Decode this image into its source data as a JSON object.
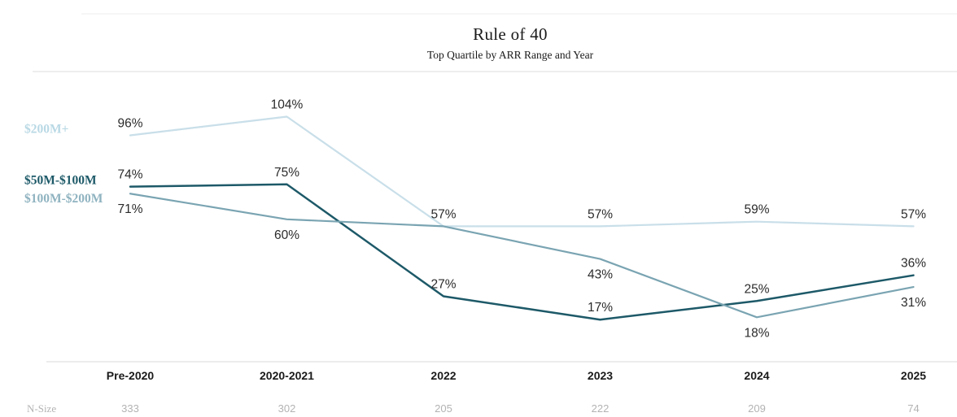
{
  "title": "Rule of 40",
  "subtitle": "Top Quartile by ARR Range and Year",
  "n_size_label": "N-Size",
  "colors": {
    "divider": "#e4e4e4",
    "axis_line": "#e1e1e1",
    "data_label": "#2b2b2b",
    "category_label": "#1a1a1a",
    "n_size": "#b3b3b3"
  },
  "chart_data": {
    "type": "line",
    "title": "Rule of 40",
    "subtitle": "Top Quartile by ARR Range and Year",
    "categories": [
      "Pre-2020",
      "2020-2021",
      "2022",
      "2023",
      "2024",
      "2025"
    ],
    "n_sizes": [
      333,
      302,
      205,
      222,
      209,
      74
    ],
    "value_suffix": "%",
    "ylim": [
      0,
      123
    ],
    "grid": false,
    "legend_position": "left",
    "series": [
      {
        "name": "$200M+",
        "line_color": "#c9dfe9",
        "legend_color": "#b9d9e5",
        "values": [
          96,
          104,
          57,
          57,
          59,
          57
        ],
        "labels": [
          "96%",
          "104%",
          "57%",
          "57%",
          "59%",
          "57%"
        ],
        "label_positions": [
          "above",
          "above",
          "above",
          "above",
          "above",
          "above"
        ]
      },
      {
        "name": "$50M-$100M",
        "line_color": "#1d5968",
        "legend_color": "#1d5968",
        "values": [
          74,
          75,
          27,
          17,
          25,
          36
        ],
        "labels": [
          "74%",
          "75%",
          "27%",
          "17%",
          "25%",
          "36%"
        ],
        "label_positions": [
          "above",
          "above",
          "above",
          "above",
          "above",
          "above"
        ]
      },
      {
        "name": "$100M-$200M",
        "line_color": "#7aa4b2",
        "legend_color": "#8fb3c0",
        "values": [
          71,
          60,
          57,
          43,
          18,
          31
        ],
        "labels": [
          "71%",
          "60%",
          "",
          "43%",
          "18%",
          "31%"
        ],
        "label_positions": [
          "below",
          "below",
          "none",
          "below",
          "below",
          "below"
        ]
      }
    ]
  }
}
